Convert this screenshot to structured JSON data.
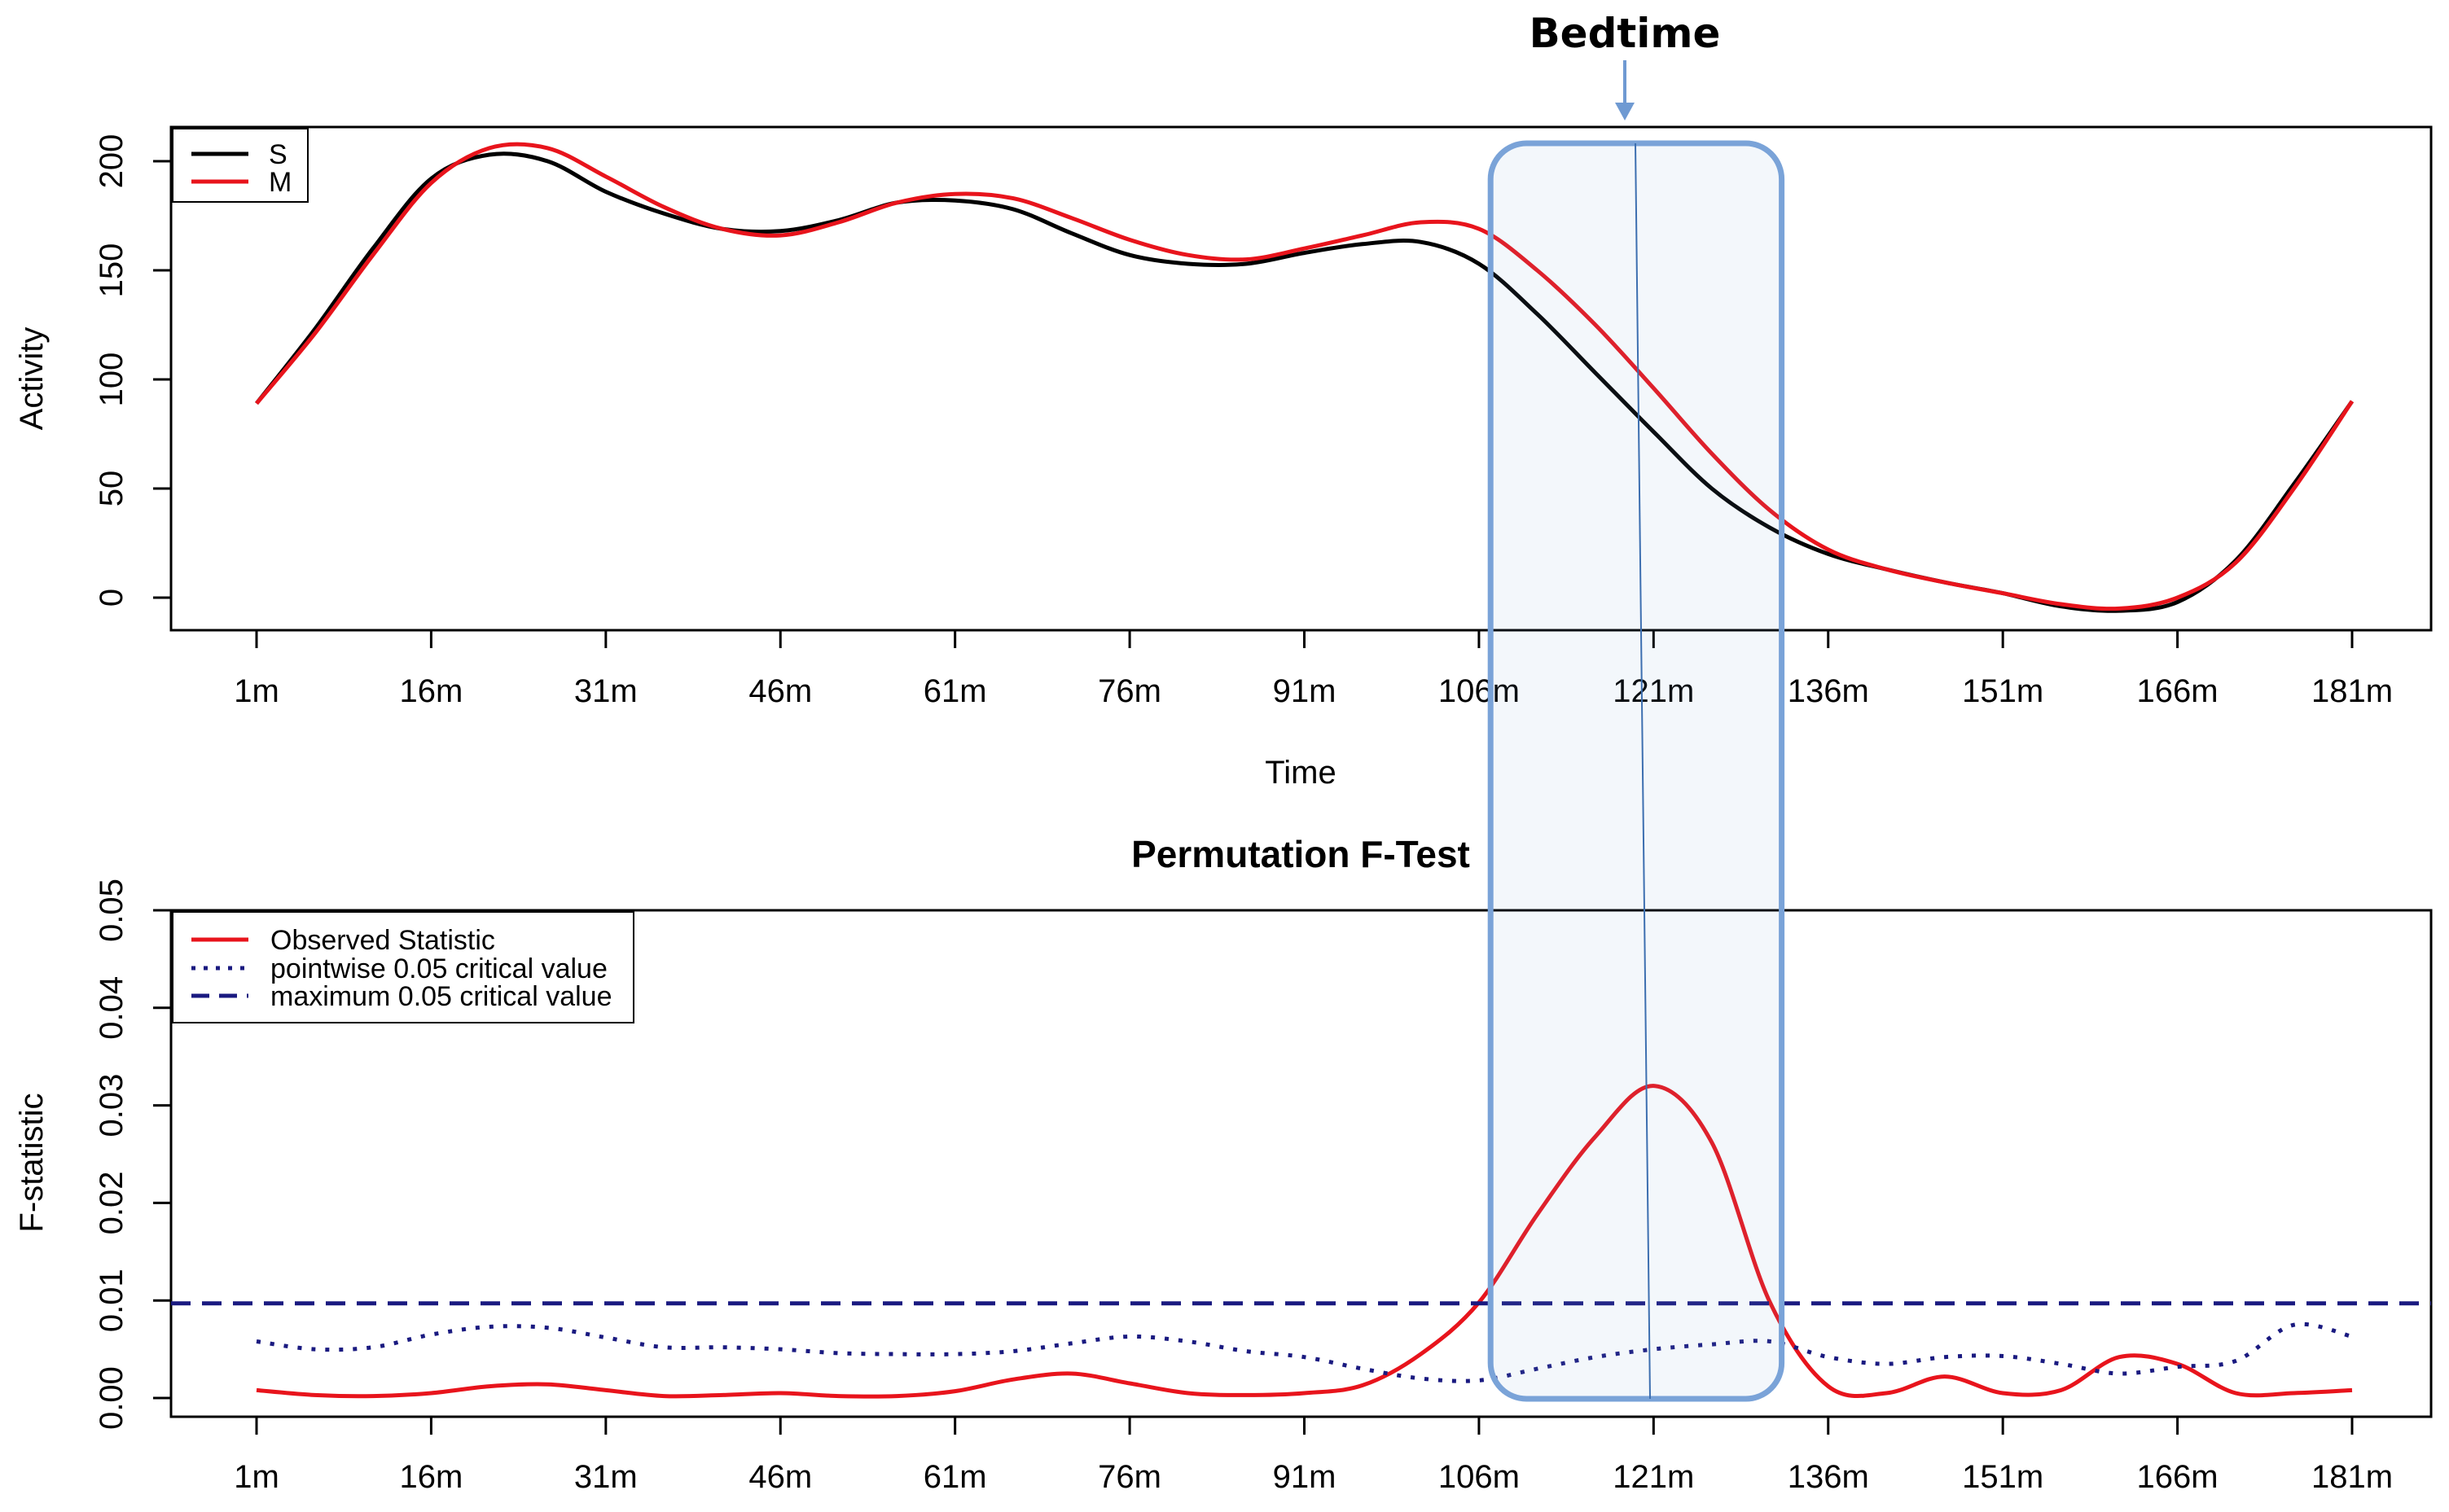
{
  "annotation": {
    "label": "Bedtime",
    "time": 120,
    "window": [
      107,
      132
    ],
    "color": "#7aa3d8"
  },
  "chart_data": [
    {
      "type": "line",
      "title": "",
      "xlabel": "Time",
      "ylabel": "Activity",
      "xlim": [
        1,
        181
      ],
      "ylim": [
        -10,
        215
      ],
      "categories": [
        "1m",
        "16m",
        "31m",
        "46m",
        "61m",
        "76m",
        "91m",
        "106m",
        "121m",
        "136m",
        "151m",
        "166m",
        "181m"
      ],
      "yticks": [
        "0",
        "50",
        "100",
        "150",
        "200"
      ],
      "legend_position": "top-left",
      "series": [
        {
          "name": "S",
          "color": "#000000",
          "x": [
            1,
            6,
            11,
            16,
            21,
            26,
            31,
            36,
            41,
            46,
            51,
            56,
            61,
            66,
            71,
            76,
            81,
            86,
            91,
            96,
            101,
            106,
            111,
            116,
            121,
            126,
            131,
            136,
            141,
            146,
            151,
            156,
            161,
            166,
            171,
            176,
            181
          ],
          "values": [
            89,
            123,
            160,
            192,
            203,
            200,
            186,
            176,
            169,
            168,
            173,
            181,
            182,
            178,
            167,
            157,
            153,
            153,
            158,
            162,
            163,
            153,
            130,
            103,
            76,
            50,
            32,
            20,
            13,
            7,
            2,
            -4,
            -6,
            -2,
            17,
            52,
            90
          ]
        },
        {
          "name": "M",
          "color": "#e8141c",
          "x": [
            1,
            6,
            11,
            16,
            21,
            26,
            31,
            36,
            41,
            46,
            51,
            56,
            61,
            66,
            71,
            76,
            81,
            86,
            91,
            96,
            101,
            106,
            111,
            116,
            121,
            126,
            131,
            136,
            141,
            146,
            151,
            156,
            161,
            166,
            171,
            176,
            181
          ],
          "values": [
            89,
            121,
            157,
            190,
            206,
            206,
            193,
            179,
            169,
            166,
            172,
            181,
            185,
            183,
            174,
            164,
            157,
            155,
            160,
            166,
            172,
            169,
            150,
            125,
            96,
            66,
            40,
            22,
            13,
            7,
            2,
            -3,
            -5,
            0,
            16,
            50,
            90
          ]
        }
      ]
    },
    {
      "type": "line",
      "title": "Permutation F-Test",
      "xlabel": "",
      "ylabel": "F-statistic",
      "xlim": [
        1,
        181
      ],
      "ylim": [
        0,
        0.05
      ],
      "categories": [
        "1m",
        "16m",
        "31m",
        "46m",
        "61m",
        "76m",
        "91m",
        "106m",
        "121m",
        "136m",
        "151m",
        "166m",
        "181m"
      ],
      "yticks": [
        "0.00",
        "0.01",
        "0.02",
        "0.03",
        "0.04",
        "0.05"
      ],
      "legend_position": "top-left",
      "series": [
        {
          "name": "Observed Statistic",
          "color": "#e8141c",
          "style": "solid",
          "x": [
            1,
            6,
            11,
            16,
            21,
            26,
            31,
            36,
            41,
            46,
            51,
            56,
            61,
            66,
            71,
            76,
            81,
            86,
            91,
            96,
            101,
            106,
            111,
            116,
            121,
            126,
            131,
            136,
            141,
            146,
            151,
            156,
            161,
            166,
            171,
            176,
            181
          ],
          "values": [
            0.0008,
            0.0003,
            0.0002,
            0.0005,
            0.0012,
            0.0014,
            0.0008,
            0.0002,
            0.0003,
            0.0005,
            0.0002,
            0.0002,
            0.0007,
            0.0019,
            0.0025,
            0.0015,
            0.0005,
            0.0003,
            0.0005,
            0.0013,
            0.0045,
            0.0098,
            0.0188,
            0.0268,
            0.032,
            0.0262,
            0.0098,
            0.0012,
            0.0005,
            0.0022,
            0.0005,
            0.0008,
            0.0042,
            0.0035,
            0.0005,
            0.0005,
            0.0008
          ]
        },
        {
          "name": "pointwise 0.05 critical value",
          "color": "#1a1a80",
          "style": "dotted",
          "x": [
            1,
            6,
            11,
            16,
            21,
            26,
            31,
            36,
            41,
            46,
            51,
            56,
            61,
            66,
            71,
            76,
            81,
            86,
            91,
            96,
            101,
            106,
            111,
            116,
            121,
            126,
            131,
            136,
            141,
            146,
            151,
            156,
            161,
            166,
            171,
            176,
            181
          ],
          "values": [
            0.0058,
            0.005,
            0.0052,
            0.0065,
            0.0073,
            0.0072,
            0.0062,
            0.0052,
            0.0052,
            0.005,
            0.0046,
            0.0045,
            0.0045,
            0.0048,
            0.0056,
            0.0063,
            0.0058,
            0.0048,
            0.0042,
            0.003,
            0.002,
            0.0018,
            0.003,
            0.0042,
            0.005,
            0.0055,
            0.0058,
            0.0042,
            0.0035,
            0.0042,
            0.0043,
            0.0035,
            0.0025,
            0.0032,
            0.0038,
            0.0075,
            0.0063
          ]
        },
        {
          "name": "maximum 0.05 critical value",
          "color": "#1a1a80",
          "style": "dashed",
          "x": [
            1,
            181
          ],
          "values": [
            0.0097,
            0.0097
          ]
        }
      ]
    }
  ]
}
